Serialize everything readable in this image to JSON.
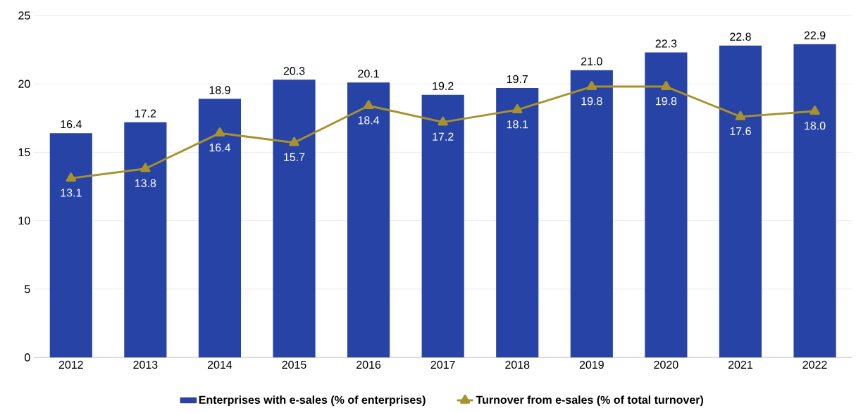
{
  "chart_data": {
    "type": "bar",
    "categories": [
      "2012",
      "2013",
      "2014",
      "2015",
      "2016",
      "2017",
      "2018",
      "2019",
      "2020",
      "2021",
      "2022"
    ],
    "series": [
      {
        "name": "Enterprises with e-sales (% of enterprises)",
        "color": "#2743a5",
        "values": [
          16.4,
          17.2,
          18.9,
          20.3,
          20.1,
          19.2,
          19.7,
          21.0,
          22.3,
          22.8,
          22.9
        ],
        "value_labels": [
          "16.4",
          "17.2",
          "18.9",
          "20.3",
          "20.1",
          "19.2",
          "19.7",
          "21.0",
          "22.3",
          "22.8",
          "22.9"
        ]
      },
      {
        "name": "Turnover from e-sales (% of total turnover)",
        "type": "line",
        "color": "#a8922b",
        "marker": "triangle",
        "values": [
          13.1,
          13.8,
          16.4,
          15.7,
          18.4,
          17.2,
          18.1,
          19.8,
          19.8,
          17.6,
          18.0
        ],
        "value_labels": [
          "13.1",
          "13.8",
          "16.4",
          "15.7",
          "18.4",
          "17.2",
          "18.1",
          "19.8",
          "19.8",
          "17.6",
          "18.0"
        ]
      }
    ],
    "ylim": [
      0,
      25
    ],
    "yticks": [
      0,
      5,
      10,
      15,
      20,
      25
    ],
    "grid": "y",
    "legend": "bottom"
  }
}
